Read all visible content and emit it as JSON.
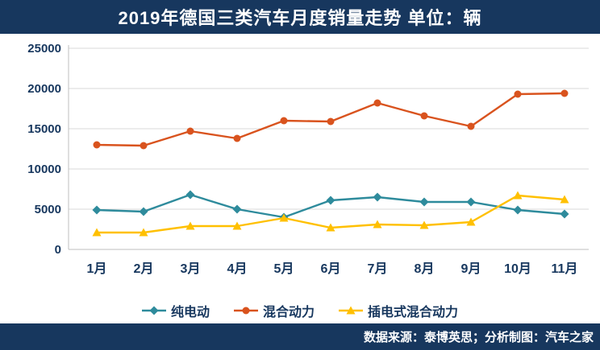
{
  "title": "2019年德国三类汽车月度销量走势  单位：辆",
  "footer_note": "数据来源：泰博英思；分析制图：汽车之家",
  "colors": {
    "header_bg": "#17375E",
    "axis_text": "#17375E",
    "grid": "#D9D9D9",
    "axis_line": "#BFBFBF"
  },
  "chart_data": {
    "type": "line",
    "title": "2019年德国三类汽车月度销量走势",
    "unit_label": "单位：辆",
    "categories": [
      "1月",
      "2月",
      "3月",
      "4月",
      "5月",
      "6月",
      "7月",
      "8月",
      "9月",
      "10月",
      "11月"
    ],
    "y_ticks": [
      0,
      5000,
      10000,
      15000,
      20000,
      25000
    ],
    "ylim": [
      0,
      25000
    ],
    "grid": true,
    "legend_position": "bottom",
    "series": [
      {
        "name": "纯电动",
        "marker": "diamond",
        "color": "#2E8B9C",
        "values": [
          4900,
          4700,
          6800,
          5000,
          4000,
          6100,
          6500,
          5900,
          5900,
          4900,
          4400
        ]
      },
      {
        "name": "混合动力",
        "marker": "circle",
        "color": "#D9531E",
        "values": [
          13000,
          12900,
          14700,
          13800,
          16000,
          15900,
          18200,
          16600,
          15300,
          19300,
          19400
        ]
      },
      {
        "name": "插电式混合动力",
        "marker": "triangle",
        "color": "#FFC000",
        "values": [
          2100,
          2100,
          2900,
          2900,
          3900,
          2700,
          3100,
          3000,
          3400,
          6700,
          6200
        ]
      }
    ]
  }
}
